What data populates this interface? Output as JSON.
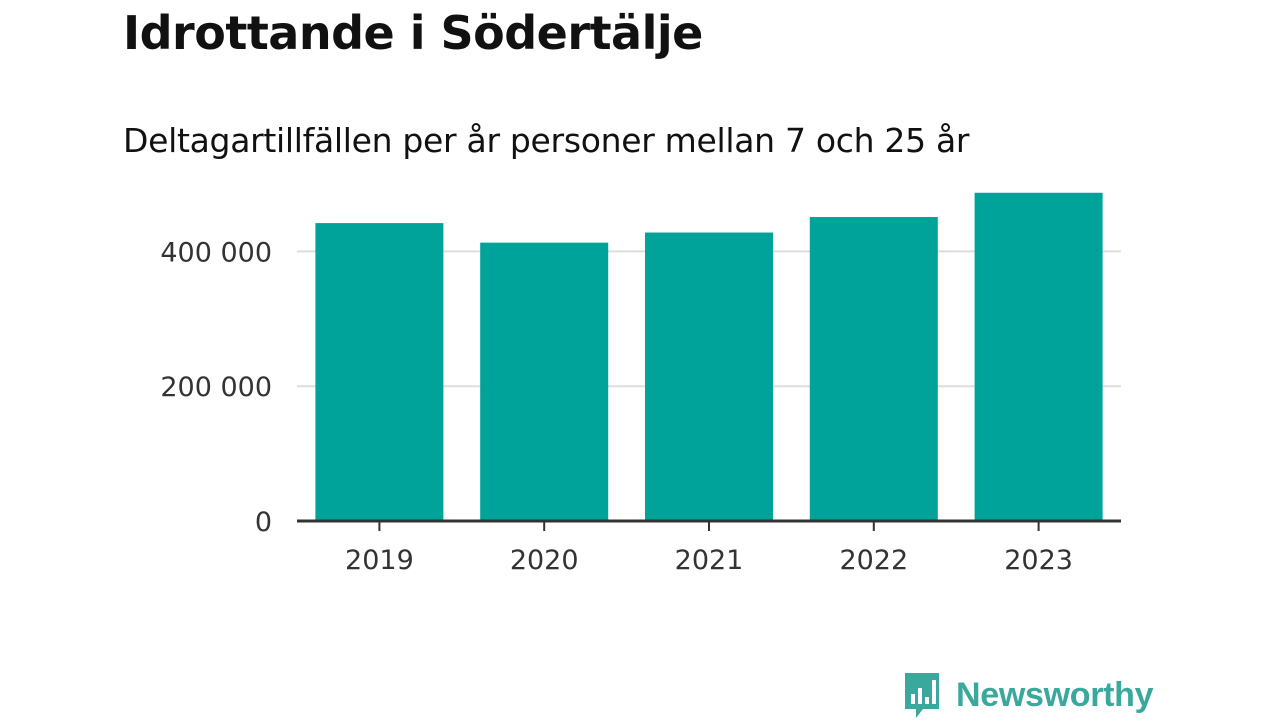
{
  "chart_data": {
    "type": "bar",
    "title": "Idrottande i Södertälje",
    "subtitle": "Deltagartillfällen per år personer mellan 7 och 25 år",
    "xlabel": "",
    "ylabel": "",
    "categories": [
      "2019",
      "2020",
      "2021",
      "2022",
      "2023"
    ],
    "values": [
      442000,
      413000,
      428000,
      451000,
      487000
    ],
    "ylim": [
      0,
      500000
    ],
    "yticks": [
      0,
      200000,
      400000
    ],
    "ytick_labels": [
      "0",
      "200 000",
      "400 000"
    ],
    "grid": true,
    "legend": "none",
    "bar_color": "#00a39a"
  },
  "branding": {
    "name": "Newsworthy",
    "color": "#3aa89c",
    "icon": "bar-chart-speech-icon"
  }
}
